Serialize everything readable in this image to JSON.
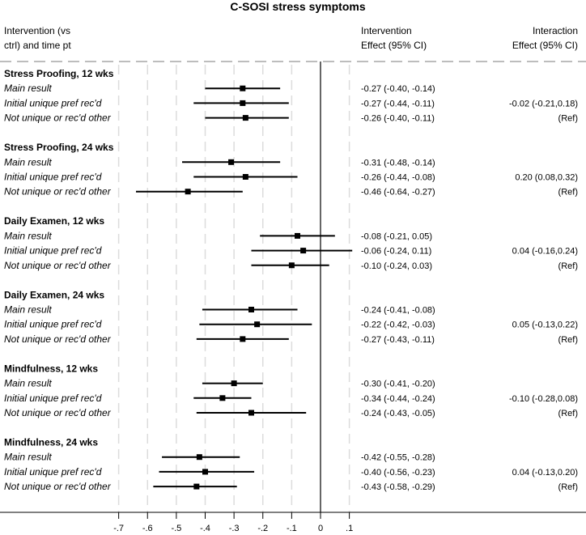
{
  "chart_data": {
    "type": "forest",
    "title": "C-SOSI stress symptoms",
    "header": {
      "left_line1": "Intervention (vs",
      "left_line2": "ctrl) and time pt",
      "mid_line1": "Intervention",
      "mid_line2": "Effect (95% CI)",
      "right_line1": "Interaction",
      "right_line2": "Effect (95% CI)"
    },
    "x_ticks": [
      -0.7,
      -0.6,
      -0.5,
      -0.4,
      -0.3,
      -0.2,
      -0.1,
      0,
      0.1
    ],
    "x_tick_labels": [
      "-.7",
      "-.6",
      "-.5",
      "-.4",
      "-.3",
      "-.2",
      "-.1",
      "0",
      ".1"
    ],
    "xlim": [
      -0.8,
      0.2
    ],
    "reference_line": 0,
    "groups": [
      {
        "title": "Stress Proofing, 12 wks",
        "rows": [
          {
            "label": "Main result",
            "est": -0.27,
            "lo": -0.4,
            "hi": -0.14,
            "effect_text": "-0.27 (-0.40, -0.14)",
            "interaction_text": ""
          },
          {
            "label": "Initial unique pref rec'd",
            "est": -0.27,
            "lo": -0.44,
            "hi": -0.11,
            "effect_text": "-0.27 (-0.44, -0.11)",
            "interaction_text": "-0.02 (-0.21,0.18)"
          },
          {
            "label": "Not unique or rec'd other",
            "est": -0.26,
            "lo": -0.4,
            "hi": -0.11,
            "effect_text": "-0.26 (-0.40, -0.11)",
            "interaction_text": "(Ref)"
          }
        ]
      },
      {
        "title": "Stress Proofing, 24 wks",
        "rows": [
          {
            "label": "Main result",
            "est": -0.31,
            "lo": -0.48,
            "hi": -0.14,
            "effect_text": "-0.31 (-0.48, -0.14)",
            "interaction_text": ""
          },
          {
            "label": "Initial unique pref rec'd",
            "est": -0.26,
            "lo": -0.44,
            "hi": -0.08,
            "effect_text": "-0.26 (-0.44, -0.08)",
            "interaction_text": "0.20 (0.08,0.32)"
          },
          {
            "label": "Not unique or rec'd other",
            "est": -0.46,
            "lo": -0.64,
            "hi": -0.27,
            "effect_text": "-0.46 (-0.64, -0.27)",
            "interaction_text": "(Ref)"
          }
        ]
      },
      {
        "title": "Daily Examen, 12 wks",
        "rows": [
          {
            "label": "Main result",
            "est": -0.08,
            "lo": -0.21,
            "hi": 0.05,
            "effect_text": "-0.08 (-0.21, 0.05)",
            "interaction_text": ""
          },
          {
            "label": "Initial unique pref rec'd",
            "est": -0.06,
            "lo": -0.24,
            "hi": 0.11,
            "effect_text": "-0.06 (-0.24, 0.11)",
            "interaction_text": "0.04 (-0.16,0.24)"
          },
          {
            "label": "Not unique or rec'd other",
            "est": -0.1,
            "lo": -0.24,
            "hi": 0.03,
            "effect_text": "-0.10 (-0.24, 0.03)",
            "interaction_text": "(Ref)"
          }
        ]
      },
      {
        "title": "Daily Examen, 24 wks",
        "rows": [
          {
            "label": "Main result",
            "est": -0.24,
            "lo": -0.41,
            "hi": -0.08,
            "effect_text": "-0.24 (-0.41, -0.08)",
            "interaction_text": ""
          },
          {
            "label": "Initial unique pref rec'd",
            "est": -0.22,
            "lo": -0.42,
            "hi": -0.03,
            "effect_text": "-0.22 (-0.42, -0.03)",
            "interaction_text": "0.05 (-0.13,0.22)"
          },
          {
            "label": "Not unique or rec'd other",
            "est": -0.27,
            "lo": -0.43,
            "hi": -0.11,
            "effect_text": "-0.27 (-0.43, -0.11)",
            "interaction_text": "(Ref)"
          }
        ]
      },
      {
        "title": "Mindfulness, 12 wks",
        "rows": [
          {
            "label": "Main result",
            "est": -0.3,
            "lo": -0.41,
            "hi": -0.2,
            "effect_text": "-0.30 (-0.41, -0.20)",
            "interaction_text": ""
          },
          {
            "label": "Initial unique pref rec'd",
            "est": -0.34,
            "lo": -0.44,
            "hi": -0.24,
            "effect_text": "-0.34 (-0.44, -0.24)",
            "interaction_text": "-0.10 (-0.28,0.08)"
          },
          {
            "label": "Not unique or rec'd other",
            "est": -0.24,
            "lo": -0.43,
            "hi": -0.05,
            "effect_text": "-0.24 (-0.43, -0.05)",
            "interaction_text": "(Ref)"
          }
        ]
      },
      {
        "title": "Mindfulness, 24 wks",
        "rows": [
          {
            "label": "Main result",
            "est": -0.42,
            "lo": -0.55,
            "hi": -0.28,
            "effect_text": "-0.42 (-0.55, -0.28)",
            "interaction_text": ""
          },
          {
            "label": "Initial unique pref rec'd",
            "est": -0.4,
            "lo": -0.56,
            "hi": -0.23,
            "effect_text": "-0.40 (-0.56, -0.23)",
            "interaction_text": "0.04 (-0.13,0.20)"
          },
          {
            "label": "Not unique or rec'd other",
            "est": -0.43,
            "lo": -0.58,
            "hi": -0.29,
            "effect_text": "-0.43 (-0.58, -0.29)",
            "interaction_text": "(Ref)"
          }
        ]
      }
    ]
  }
}
